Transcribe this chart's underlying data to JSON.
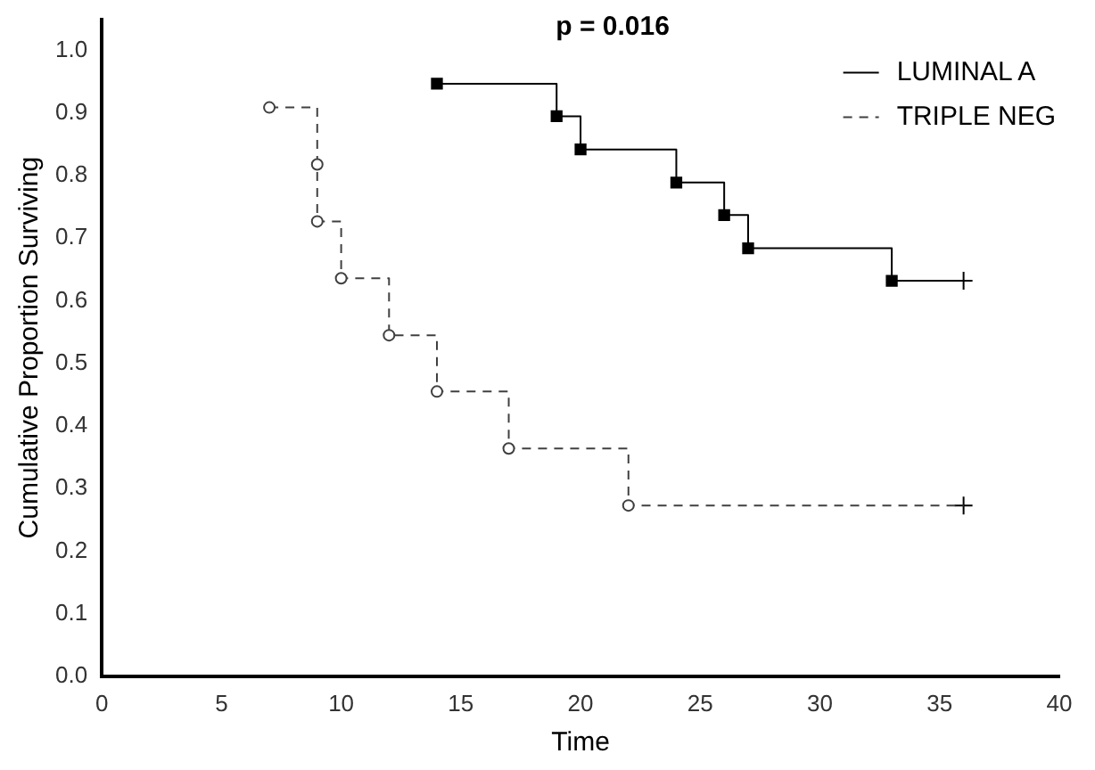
{
  "chart_data": {
    "type": "step",
    "xlabel": "Time",
    "ylabel": "Cumulative Proportion Surviving",
    "annotations": [
      "p = 0.016"
    ],
    "xlim": [
      0,
      40
    ],
    "xticks": [
      0,
      5,
      10,
      15,
      20,
      25,
      30,
      35,
      40
    ],
    "ylim": [
      0,
      1.05
    ],
    "yticks": [
      {
        "value": 0,
        "label": "0.0"
      },
      {
        "value": 0.1,
        "label": "0.1"
      },
      {
        "value": 0.2,
        "label": "0.2"
      },
      {
        "value": 0.3,
        "label": "0.3"
      },
      {
        "value": 0.4,
        "label": "0.4"
      },
      {
        "value": 0.5,
        "label": "0.5"
      },
      {
        "value": 0.6,
        "label": "0.6"
      },
      {
        "value": 0.7,
        "label": "0.7"
      },
      {
        "value": 0.8,
        "label": "0.8"
      },
      {
        "value": 0.9,
        "label": "0.9"
      },
      {
        "value": 1,
        "label": "1.0"
      }
    ],
    "grid": false,
    "legend": "top right",
    "series": [
      {
        "name": "LUMINAL A",
        "color": "#000000",
        "marker": "square",
        "line_style": "solid",
        "x": [
          14,
          19,
          20,
          24,
          26,
          27,
          33,
          36
        ],
        "values": [
          0.947,
          0.895,
          0.842,
          0.789,
          0.737,
          0.684,
          0.632,
          0.632
        ]
      },
      {
        "name": "TRIPLE NEG",
        "color": "#404040",
        "marker": "circle",
        "line_style": "dashed",
        "x": [
          7,
          9,
          9,
          10,
          12,
          14,
          17,
          22,
          36
        ],
        "values": [
          0.909,
          0.818,
          0.727,
          0.636,
          0.545,
          0.455,
          0.364,
          0.273,
          0.273
        ]
      },
      {
        "type": "scatter",
        "color": "#000000",
        "marker": "cross",
        "x": [
          36,
          36
        ],
        "values": [
          0.632,
          0.273
        ]
      }
    ]
  }
}
